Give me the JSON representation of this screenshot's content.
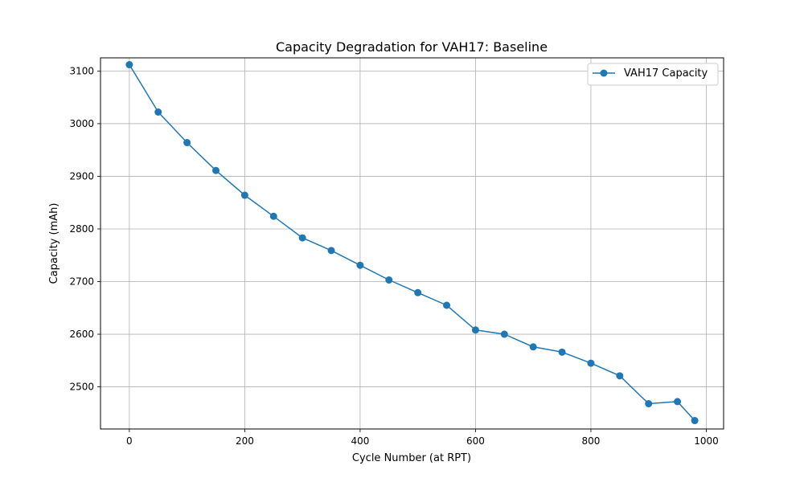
{
  "chart_data": {
    "type": "line",
    "title": "Capacity Degradation for VAH17: Baseline",
    "xlabel": "Cycle Number (at RPT)",
    "ylabel": "Capacity (mAh)",
    "xlim": [
      -50,
      1030
    ],
    "ylim": [
      2420,
      3125
    ],
    "xticks": [
      0,
      200,
      400,
      600,
      800,
      1000
    ],
    "yticks": [
      2500,
      2600,
      2700,
      2800,
      2900,
      3000,
      3100
    ],
    "grid": true,
    "legend_position": "top-right",
    "series": [
      {
        "name": "VAH17 Capacity",
        "color": "#1f77b4",
        "marker": "circle",
        "x": [
          0,
          50,
          100,
          150,
          200,
          250,
          300,
          350,
          400,
          450,
          500,
          550,
          600,
          650,
          700,
          750,
          800,
          850,
          900,
          950,
          980
        ],
        "y": [
          3112,
          3022,
          2964,
          2911,
          2864,
          2824,
          2783,
          2759,
          2731,
          2703,
          2679,
          2655,
          2608,
          2600,
          2576,
          2566,
          2545,
          2521,
          2468,
          2472,
          2436
        ]
      }
    ]
  }
}
